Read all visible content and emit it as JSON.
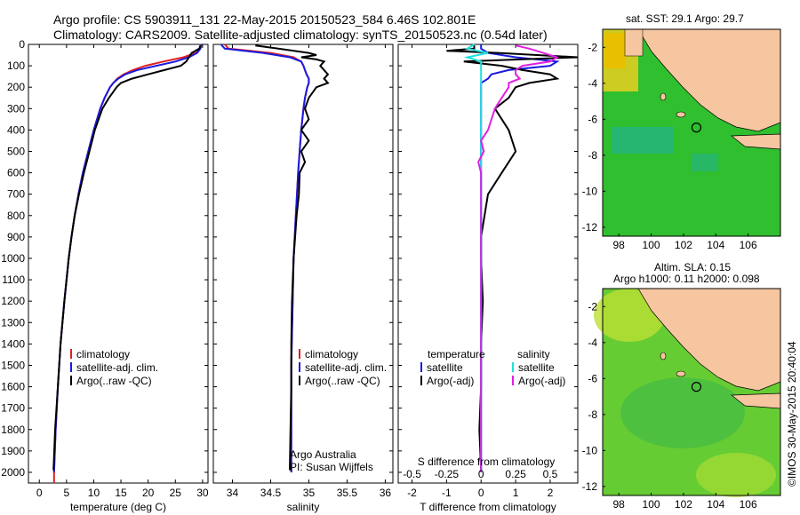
{
  "header": {
    "line1": "Argo profile: CS 5903911_131 22-May-2015 20150523_584 6.46S 102.801E",
    "line2": "Climatology: CARS2009. Satellite-adjusted climatology: synTS_20150523.nc (0.54d later)"
  },
  "colors": {
    "climatology": "#e02020",
    "satellite": "#1a1ae0",
    "argo": "#000000",
    "cyan": "#20e0e0",
    "magenta": "#e020e0",
    "land": "#f6c6a0",
    "ocean_green": "#22b822",
    "ocean_light": "#88dd44"
  },
  "chart_data": [
    {
      "type": "line",
      "id": "temperature",
      "xlabel": "temperature (deg C)",
      "ylabel": "",
      "xlim": [
        -2,
        31
      ],
      "ylim": [
        2050,
        0
      ],
      "xticks": [
        0,
        5,
        10,
        15,
        20,
        25,
        30
      ],
      "yticks": [
        0,
        100,
        200,
        300,
        400,
        500,
        600,
        700,
        800,
        900,
        1000,
        1100,
        1200,
        1300,
        1400,
        1500,
        1600,
        1700,
        1800,
        1900,
        2000
      ],
      "legend": [
        "climatology",
        "satellite-adj. clim.",
        "Argo(..raw -QC)"
      ],
      "series": [
        {
          "name": "climatology",
          "depth": [
            0,
            20,
            40,
            60,
            80,
            100,
            120,
            140,
            160,
            180,
            200,
            250,
            300,
            400,
            500,
            600,
            700,
            800,
            900,
            1000,
            1200,
            1400,
            1600,
            1800,
            2000,
            2050
          ],
          "values": [
            29.8,
            29.6,
            28.8,
            26.5,
            22.8,
            19.5,
            17.2,
            15.5,
            14.3,
            13.6,
            13.0,
            12.0,
            11.2,
            10.0,
            9.0,
            8.0,
            7.2,
            6.5,
            5.9,
            5.4,
            4.6,
            3.9,
            3.4,
            3.0,
            2.7,
            2.7
          ]
        },
        {
          "name": "satellite-adj. clim.",
          "depth": [
            0,
            20,
            40,
            60,
            80,
            100,
            120,
            140,
            160,
            180,
            200,
            250,
            300,
            400,
            500,
            600,
            700,
            800,
            900,
            1000,
            1200,
            1400,
            1600,
            1800,
            2000
          ],
          "values": [
            29.8,
            29.6,
            29.0,
            27.5,
            25.0,
            21.5,
            18.0,
            15.8,
            14.5,
            13.6,
            13.0,
            12.0,
            11.2,
            10.0,
            9.0,
            8.0,
            7.2,
            6.5,
            5.9,
            5.4,
            4.6,
            3.9,
            3.4,
            3.0,
            2.7
          ]
        },
        {
          "name": "Argo(..raw -QC)",
          "depth": [
            5,
            20,
            40,
            60,
            80,
            100,
            120,
            140,
            160,
            180,
            200,
            250,
            300,
            400,
            500,
            600,
            700,
            800,
            900,
            1000,
            1200,
            1400,
            1600,
            1800,
            1990
          ],
          "values": [
            29.6,
            29.4,
            28.0,
            27.5,
            27.0,
            26.0,
            23.0,
            20.0,
            17.0,
            15.0,
            14.2,
            12.8,
            11.6,
            10.2,
            9.2,
            8.2,
            7.3,
            6.5,
            5.9,
            5.4,
            4.6,
            3.9,
            3.4,
            2.9,
            2.6
          ]
        }
      ]
    },
    {
      "type": "line",
      "id": "salinity",
      "xlabel": "salinity",
      "ylabel": "",
      "xlim": [
        33.75,
        36.1
      ],
      "ylim": [
        2050,
        0
      ],
      "xticks": [
        34,
        34.5,
        35,
        35.5,
        36
      ],
      "legend": [
        "climatology",
        "satellite-adj. clim.",
        "Argo(..raw -QC)"
      ],
      "annotation": [
        "Argo Australia",
        "PI: Susan Wijffels"
      ],
      "series": [
        {
          "name": "climatology",
          "depth": [
            0,
            20,
            40,
            60,
            80,
            100,
            120,
            140,
            160,
            180,
            200,
            250,
            300,
            400,
            500,
            600,
            800,
            1000,
            1500,
            2000
          ],
          "values": [
            33.9,
            33.95,
            34.5,
            34.8,
            34.9,
            34.93,
            34.95,
            34.97,
            35.0,
            35.0,
            34.98,
            34.95,
            34.93,
            34.9,
            34.88,
            34.86,
            34.83,
            34.8,
            34.77,
            34.77
          ]
        },
        {
          "name": "satellite-adj. clim.",
          "depth": [
            0,
            20,
            40,
            60,
            80,
            100,
            120,
            140,
            160,
            180,
            200,
            250,
            300,
            400,
            500,
            600,
            800,
            1000,
            1500,
            2000
          ],
          "values": [
            33.85,
            33.9,
            34.4,
            34.75,
            34.9,
            34.93,
            34.95,
            34.97,
            35.0,
            35.0,
            34.98,
            34.95,
            34.93,
            34.9,
            34.88,
            34.86,
            34.83,
            34.8,
            34.77,
            34.77
          ]
        },
        {
          "name": "Argo(..raw -QC)",
          "depth": [
            5,
            20,
            40,
            50,
            60,
            70,
            80,
            100,
            120,
            140,
            160,
            180,
            200,
            250,
            300,
            350,
            400,
            450,
            500,
            550,
            600,
            700,
            800,
            900,
            1000,
            1200,
            1400,
            1600,
            1800,
            1990
          ],
          "values": [
            34.3,
            34.6,
            35.0,
            35.1,
            34.9,
            35.1,
            35.2,
            35.15,
            35.2,
            35.25,
            35.2,
            35.25,
            35.1,
            35.0,
            34.95,
            35.0,
            34.9,
            35.0,
            34.9,
            34.95,
            34.88,
            34.87,
            34.84,
            34.82,
            34.8,
            34.78,
            34.77,
            34.77,
            34.76,
            34.75
          ]
        }
      ]
    },
    {
      "type": "line",
      "id": "difference",
      "xlabel": "T difference from climatology",
      "xlabel2": "S difference from climatology",
      "xlim": [
        -2.4,
        2.8
      ],
      "ylim": [
        2050,
        0
      ],
      "xticks": [
        -2,
        -1,
        0,
        1,
        2
      ],
      "xticks2": [
        "-0.5",
        "-0.25",
        "0",
        "0.25",
        "0.5"
      ],
      "legend_left": [
        "temperature",
        "satellite",
        "Argo(-adj)"
      ],
      "legend_right": [
        "salinity",
        "satellite",
        "Argo(-adj)"
      ],
      "series": [
        {
          "name": "T satellite",
          "depth": [
            0,
            20,
            40,
            60,
            80,
            100,
            120,
            140,
            160,
            180,
            200,
            300,
            500,
            1000,
            1500,
            2000
          ],
          "values": [
            0,
            0,
            0.2,
            1.0,
            2.2,
            2.0,
            0.8,
            0.3,
            0.2,
            0,
            0,
            0,
            0,
            0,
            0,
            0
          ]
        },
        {
          "name": "T Argo(-adj)",
          "depth": [
            5,
            20,
            30,
            40,
            60,
            80,
            100,
            120,
            140,
            160,
            180,
            200,
            250,
            300,
            400,
            500,
            600,
            700,
            800,
            900,
            1000,
            1200,
            1400,
            1600,
            1800,
            1990
          ],
          "values": [
            -0.2,
            -0.2,
            -1.0,
            0.5,
            2.8,
            -0.5,
            0.6,
            1.2,
            2.0,
            2.2,
            1.4,
            1.0,
            0.8,
            0.4,
            0.8,
            1.0,
            0.6,
            0.2,
            0.1,
            0,
            0,
            0.05,
            0,
            0,
            -0.05,
            0
          ]
        },
        {
          "name": "S satellite",
          "depth": [
            0,
            20,
            40,
            60,
            80,
            100,
            150,
            200,
            300,
            500,
            1000,
            1500,
            2000
          ],
          "values": [
            -0.05,
            -0.1,
            0.05,
            -0.1,
            0.0,
            0.0,
            0.0,
            0.0,
            0.0,
            0.0,
            0.0,
            0.0,
            0.0
          ]
        },
        {
          "name": "S Argo(-adj)",
          "depth": [
            5,
            20,
            40,
            60,
            80,
            100,
            120,
            140,
            160,
            180,
            200,
            250,
            300,
            400,
            450,
            500,
            550,
            600,
            650,
            700,
            800,
            900,
            1000,
            1200,
            1500,
            2000
          ],
          "values": [
            0.25,
            0.35,
            0.45,
            0.55,
            0.5,
            0.3,
            0.25,
            0.25,
            0.28,
            0.2,
            0.2,
            0.15,
            0.1,
            0.05,
            0.0,
            0.02,
            -0.02,
            0.0,
            0.0,
            0.0,
            0.0,
            0.0,
            0.0,
            0.0,
            0.0,
            0.0
          ]
        }
      ]
    }
  ],
  "maps": {
    "sst": {
      "title": "sat. SST: 29.1  Argo: 29.7",
      "xticks": [
        "98",
        "100",
        "102",
        "104",
        "106"
      ],
      "yticks": [
        "-2",
        "-4",
        "-6",
        "-8",
        "-10",
        "-12"
      ]
    },
    "sla": {
      "title1": "Altim. SLA: 0.15",
      "title2": "Argo h1000: 0.11 h2000: 0.098",
      "xticks": [
        "98",
        "100",
        "102",
        "104",
        "106"
      ],
      "yticks": [
        "-2",
        "-4",
        "-6",
        "-8",
        "-10",
        "-12"
      ]
    }
  },
  "footer": "©IMOS 30-May-2015 20:40:04"
}
